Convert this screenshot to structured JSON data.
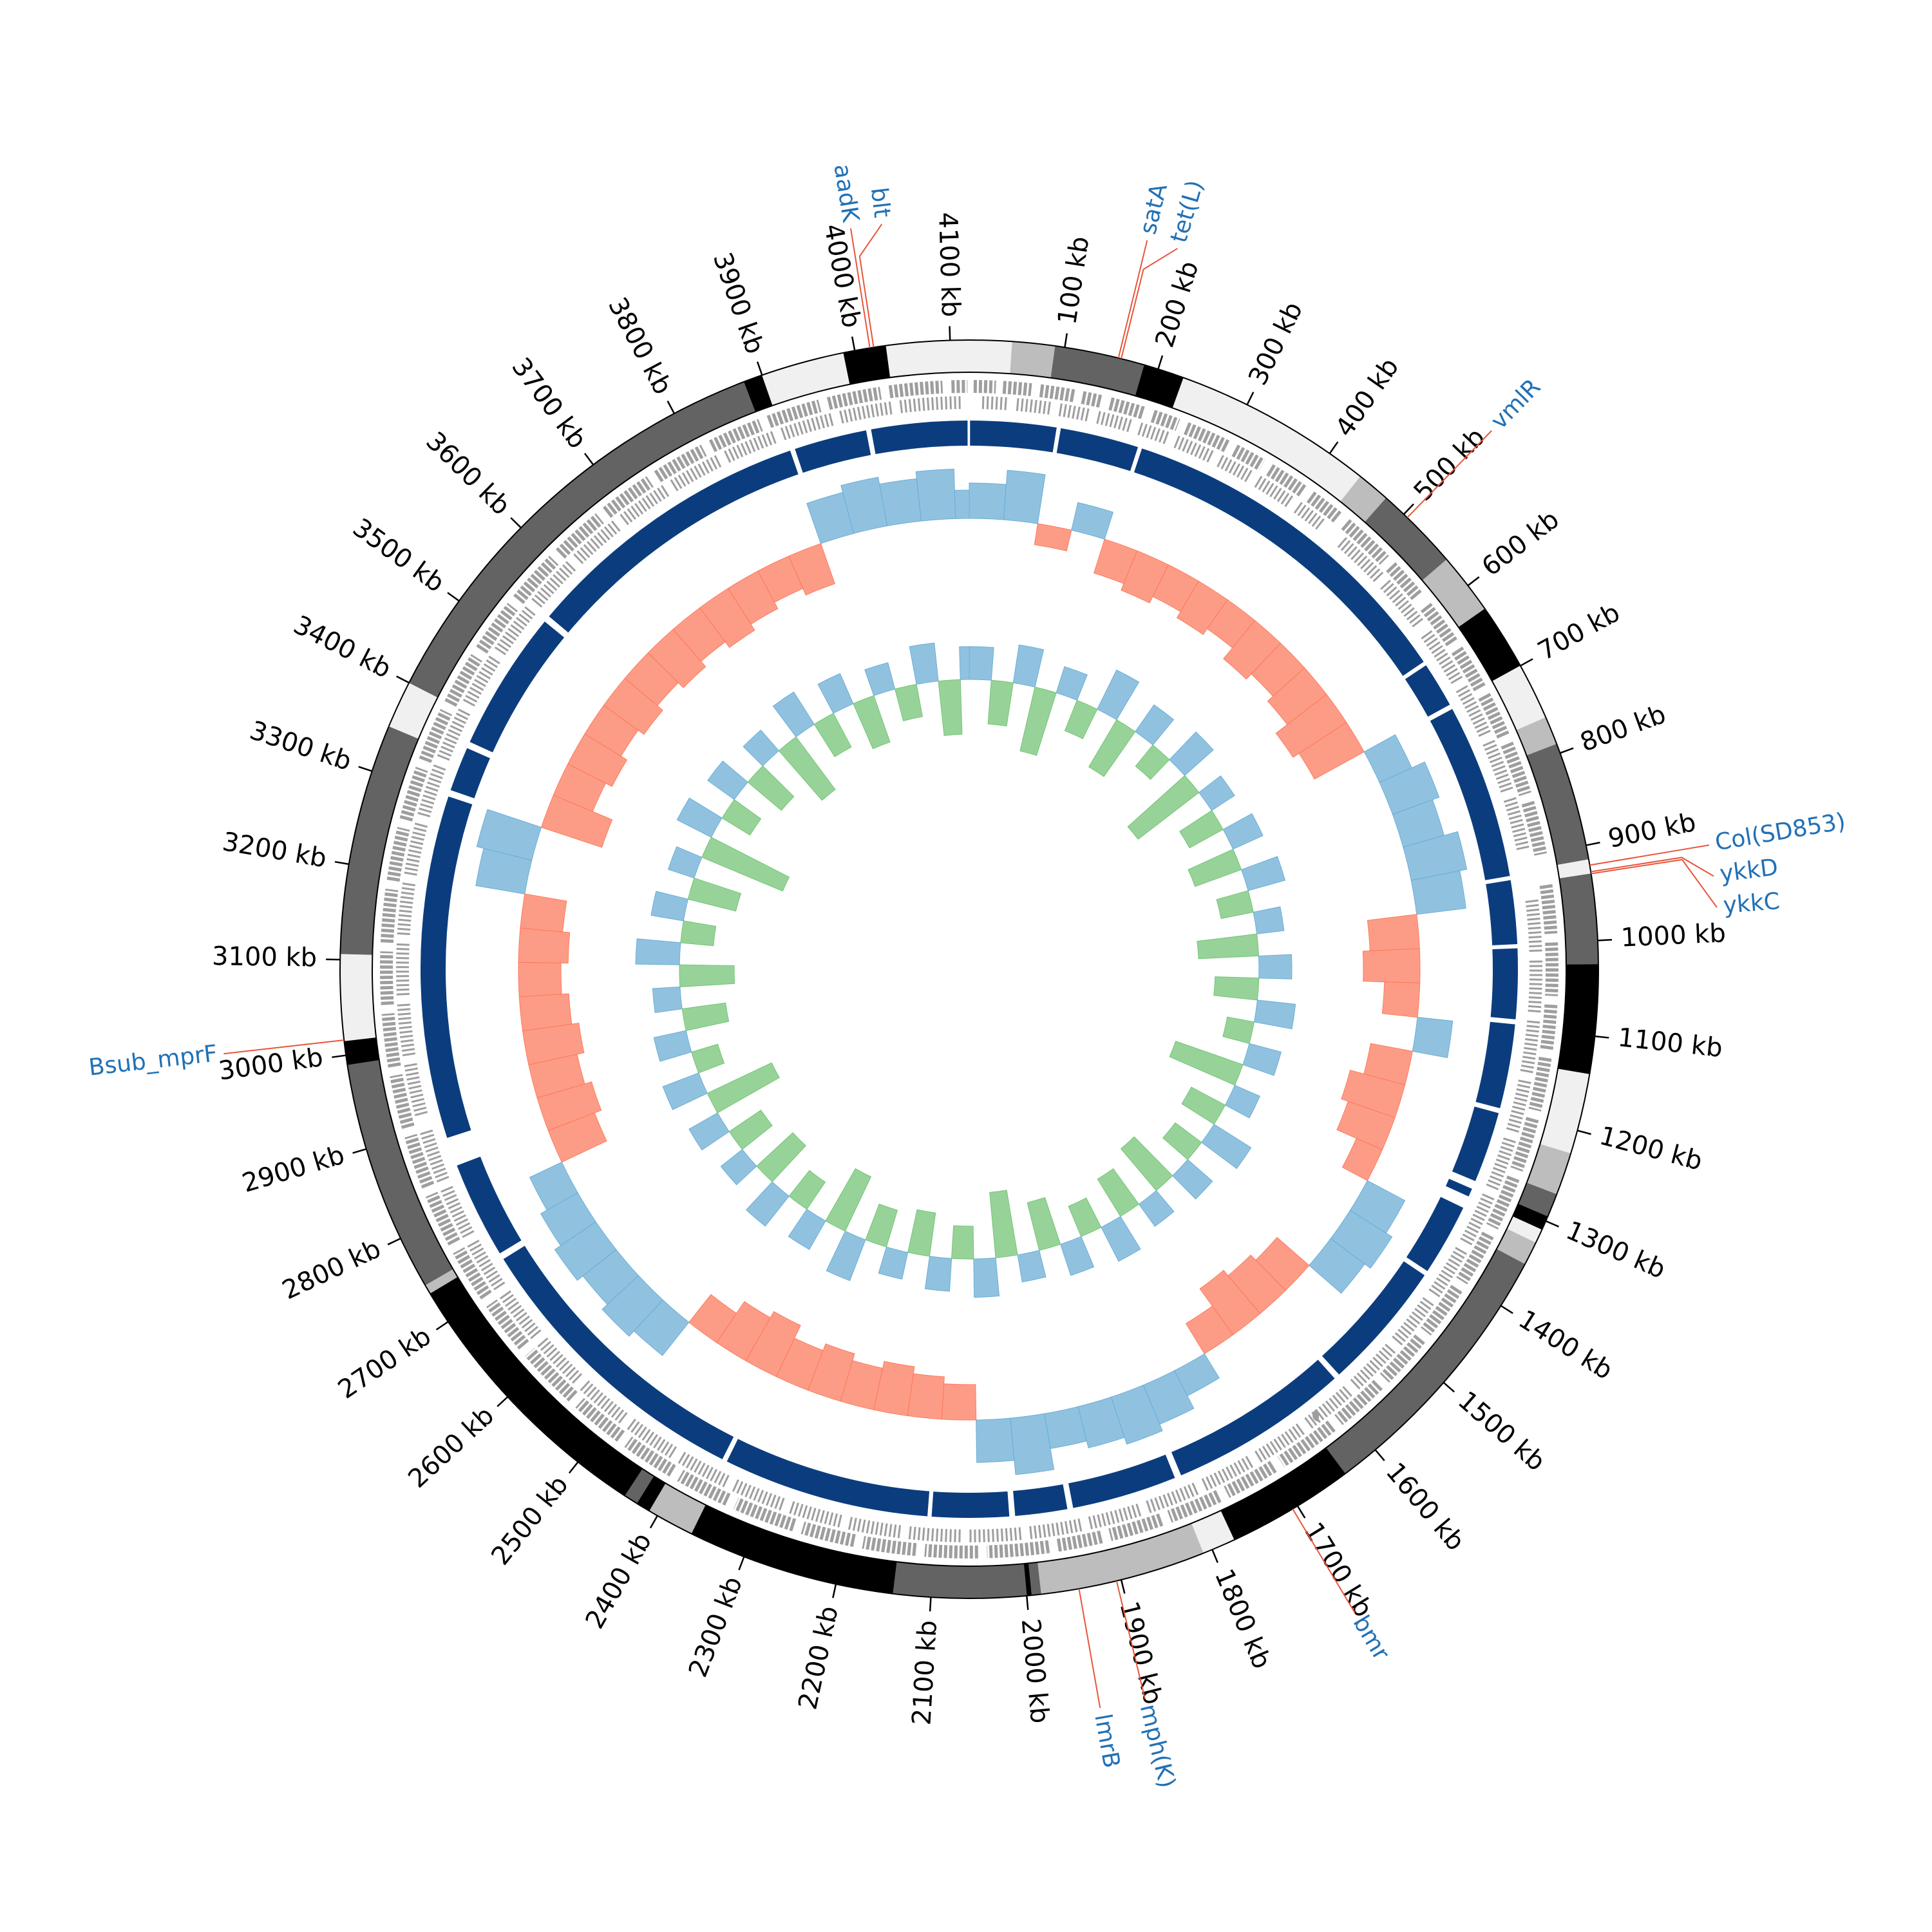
{
  "chart_data": {
    "type": "circular-genome",
    "xlim": [
      0,
      4120
    ],
    "xticks": [
      {
        "value": 100,
        "label": "100 kb"
      },
      {
        "value": 200,
        "label": "200 kb"
      },
      {
        "value": 300,
        "label": "300 kb"
      },
      {
        "value": 400,
        "label": "400 kb"
      },
      {
        "value": 500,
        "label": "500 kb"
      },
      {
        "value": 600,
        "label": "600 kb"
      },
      {
        "value": 700,
        "label": "700 kb"
      },
      {
        "value": 800,
        "label": "800 kb"
      },
      {
        "value": 900,
        "label": "900 kb"
      },
      {
        "value": 1000,
        "label": "1000 kb"
      },
      {
        "value": 1100,
        "label": "1100 kb"
      },
      {
        "value": 1200,
        "label": "1200 kb"
      },
      {
        "value": 1300,
        "label": "1300 kb"
      },
      {
        "value": 1400,
        "label": "1400 kb"
      },
      {
        "value": 1500,
        "label": "1500 kb"
      },
      {
        "value": 1600,
        "label": "1600 kb"
      },
      {
        "value": 1700,
        "label": "1700 kb"
      },
      {
        "value": 1800,
        "label": "1800 kb"
      },
      {
        "value": 1900,
        "label": "1900 kb"
      },
      {
        "value": 2000,
        "label": "2000 kb"
      },
      {
        "value": 2100,
        "label": "2100 kb"
      },
      {
        "value": 2200,
        "label": "2200 kb"
      },
      {
        "value": 2300,
        "label": "2300 kb"
      },
      {
        "value": 2400,
        "label": "2400 kb"
      },
      {
        "value": 2500,
        "label": "2500 kb"
      },
      {
        "value": 2600,
        "label": "2600 kb"
      },
      {
        "value": 2700,
        "label": "2700 kb"
      },
      {
        "value": 2800,
        "label": "2800 kb"
      },
      {
        "value": 2900,
        "label": "2900 kb"
      },
      {
        "value": 3000,
        "label": "3000 kb"
      },
      {
        "value": 3100,
        "label": "3100 kb"
      },
      {
        "value": 3200,
        "label": "3200 kb"
      },
      {
        "value": 3300,
        "label": "3300 kb"
      },
      {
        "value": 3400,
        "label": "3400 kb"
      },
      {
        "value": 3500,
        "label": "3500 kb"
      },
      {
        "value": 3600,
        "label": "3600 kb"
      },
      {
        "value": 3700,
        "label": "3700 kb"
      },
      {
        "value": 3800,
        "label": "3800 kb"
      },
      {
        "value": 3900,
        "label": "3900 kb"
      },
      {
        "value": 4000,
        "label": "4000 kb"
      },
      {
        "value": 4100,
        "label": "4100 kb"
      }
    ],
    "bands": [
      {
        "start": 0,
        "end": 45,
        "color": "#f0f0f0"
      },
      {
        "start": 45,
        "end": 90,
        "color": "#bdbdbd"
      },
      {
        "start": 90,
        "end": 185,
        "color": "#636363"
      },
      {
        "start": 185,
        "end": 228,
        "color": "#000000"
      },
      {
        "start": 228,
        "end": 330,
        "color": "#f0f0f0"
      },
      {
        "start": 330,
        "end": 440,
        "color": "#f0f0f0"
      },
      {
        "start": 440,
        "end": 475,
        "color": "#bdbdbd"
      },
      {
        "start": 475,
        "end": 565,
        "color": "#636363"
      },
      {
        "start": 565,
        "end": 630,
        "color": "#bdbdbd"
      },
      {
        "start": 630,
        "end": 700,
        "color": "#000000"
      },
      {
        "start": 700,
        "end": 760,
        "color": "#f0f0f0"
      },
      {
        "start": 760,
        "end": 790,
        "color": "#bdbdbd"
      },
      {
        "start": 790,
        "end": 915,
        "color": "#636363"
      },
      {
        "start": 915,
        "end": 930,
        "color": "#f0f0f0"
      },
      {
        "start": 930,
        "end": 1025,
        "color": "#636363"
      },
      {
        "start": 1025,
        "end": 1140,
        "color": "#000000"
      },
      {
        "start": 1140,
        "end": 1160,
        "color": "#f0f0f0"
      },
      {
        "start": 1160,
        "end": 1225,
        "color": "#f0f0f0"
      },
      {
        "start": 1225,
        "end": 1270,
        "color": "#bdbdbd"
      },
      {
        "start": 1270,
        "end": 1295,
        "color": "#636363"
      },
      {
        "start": 1295,
        "end": 1310,
        "color": "#000000"
      },
      {
        "start": 1310,
        "end": 1325,
        "color": "#f0f0f0"
      },
      {
        "start": 1325,
        "end": 1350,
        "color": "#bdbdbd"
      },
      {
        "start": 1350,
        "end": 1640,
        "color": "#636363"
      },
      {
        "start": 1640,
        "end": 1775,
        "color": "#000000"
      },
      {
        "start": 1775,
        "end": 1810,
        "color": "#f0f0f0"
      },
      {
        "start": 1810,
        "end": 1985,
        "color": "#bdbdbd"
      },
      {
        "start": 1985,
        "end": 1995,
        "color": "#636363"
      },
      {
        "start": 1995,
        "end": 2000,
        "color": "#000000"
      },
      {
        "start": 2000,
        "end": 2140,
        "color": "#636363"
      },
      {
        "start": 2140,
        "end": 2360,
        "color": "#000000"
      },
      {
        "start": 2360,
        "end": 2410,
        "color": "#bdbdbd"
      },
      {
        "start": 2410,
        "end": 2425,
        "color": "#000000"
      },
      {
        "start": 2425,
        "end": 2440,
        "color": "#636363"
      },
      {
        "start": 2440,
        "end": 2735,
        "color": "#000000"
      },
      {
        "start": 2735,
        "end": 2745,
        "color": "#bdbdbd"
      },
      {
        "start": 2745,
        "end": 2990,
        "color": "#636363"
      },
      {
        "start": 2990,
        "end": 3015,
        "color": "#000000"
      },
      {
        "start": 3015,
        "end": 3106,
        "color": "#f0f0f0"
      },
      {
        "start": 3106,
        "end": 3350,
        "color": "#636363"
      },
      {
        "start": 3350,
        "end": 3400,
        "color": "#f0f0f0"
      },
      {
        "start": 3400,
        "end": 3880,
        "color": "#636363"
      },
      {
        "start": 3880,
        "end": 3900,
        "color": "#000000"
      },
      {
        "start": 3900,
        "end": 3988,
        "color": "#f0f0f0"
      },
      {
        "start": 3988,
        "end": 4033,
        "color": "#000000"
      },
      {
        "start": 4033,
        "end": 4120,
        "color": "#f0f0f0"
      }
    ],
    "genes": {
      "color": "#9e9e9e",
      "forward": [
        [
          5,
          30
        ],
        [
          38,
          70
        ],
        [
          80,
          120
        ],
        [
          128,
          150
        ],
        [
          160,
          200
        ],
        [
          210,
          240
        ],
        [
          250,
          300
        ],
        [
          310,
          345
        ],
        [
          355,
          400
        ],
        [
          410,
          450
        ],
        [
          460,
          520
        ],
        [
          530,
          575
        ],
        [
          590,
          640
        ],
        [
          650,
          700
        ],
        [
          710,
          760
        ],
        [
          770,
          830
        ],
        [
          840,
          900
        ],
        [
          935,
          990
        ],
        [
          1000,
          1060
        ],
        [
          1070,
          1120
        ],
        [
          1130,
          1190
        ],
        [
          1200,
          1260
        ],
        [
          1270,
          1330
        ],
        [
          1340,
          1400
        ],
        [
          1410,
          1470
        ],
        [
          1480,
          1540
        ],
        [
          1550,
          1610
        ],
        [
          1620,
          1690
        ],
        [
          1700,
          1760
        ],
        [
          1770,
          1830
        ],
        [
          1840,
          1900
        ],
        [
          1910,
          1960
        ],
        [
          1970,
          2040
        ],
        [
          2050,
          2110
        ],
        [
          2120,
          2180
        ],
        [
          2190,
          2250
        ],
        [
          2260,
          2330
        ],
        [
          2340,
          2400
        ],
        [
          2410,
          2470
        ],
        [
          2480,
          2540
        ],
        [
          2550,
          2620
        ],
        [
          2630,
          2690
        ],
        [
          2700,
          2760
        ],
        [
          2770,
          2830
        ],
        [
          2840,
          2900
        ],
        [
          2910,
          2970
        ],
        [
          2980,
          3040
        ],
        [
          3050,
          3110
        ],
        [
          3120,
          3180
        ],
        [
          3190,
          3250
        ],
        [
          3260,
          3320
        ],
        [
          3330,
          3390
        ],
        [
          3400,
          3460
        ],
        [
          3470,
          3530
        ],
        [
          3540,
          3600
        ],
        [
          3610,
          3670
        ],
        [
          3680,
          3740
        ],
        [
          3750,
          3810
        ],
        [
          3820,
          3880
        ],
        [
          3890,
          3950
        ],
        [
          3960,
          4020
        ],
        [
          4030,
          4090
        ],
        [
          4100,
          4118
        ]
      ],
      "reverse": [
        [
          15,
          45
        ],
        [
          55,
          95
        ],
        [
          105,
          140
        ],
        [
          150,
          190
        ],
        [
          200,
          235
        ],
        [
          245,
          290
        ],
        [
          300,
          340
        ],
        [
          350,
          395
        ],
        [
          405,
          440
        ],
        [
          470,
          530
        ],
        [
          540,
          600
        ],
        [
          615,
          680
        ],
        [
          690,
          750
        ],
        [
          760,
          820
        ],
        [
          830,
          890
        ],
        [
          950,
          1010
        ],
        [
          1020,
          1080
        ],
        [
          1090,
          1150
        ],
        [
          1160,
          1220
        ],
        [
          1230,
          1290
        ],
        [
          1300,
          1360
        ],
        [
          1370,
          1430
        ],
        [
          1440,
          1500
        ],
        [
          1510,
          1570
        ],
        [
          1580,
          1640
        ],
        [
          1650,
          1710
        ],
        [
          1720,
          1780
        ],
        [
          1790,
          1850
        ],
        [
          1860,
          1920
        ],
        [
          1930,
          1990
        ],
        [
          2000,
          2060
        ],
        [
          2070,
          2130
        ],
        [
          2140,
          2200
        ],
        [
          2210,
          2270
        ],
        [
          2280,
          2340
        ],
        [
          2350,
          2410
        ],
        [
          2420,
          2480
        ],
        [
          2490,
          2550
        ],
        [
          2560,
          2620
        ],
        [
          2630,
          2690
        ],
        [
          2700,
          2760
        ],
        [
          2770,
          2830
        ],
        [
          2840,
          2900
        ],
        [
          2920,
          2980
        ],
        [
          2990,
          3050
        ],
        [
          3060,
          3120
        ],
        [
          3130,
          3190
        ],
        [
          3200,
          3260
        ],
        [
          3270,
          3330
        ],
        [
          3340,
          3400
        ],
        [
          3410,
          3470
        ],
        [
          3480,
          3540
        ],
        [
          3550,
          3610
        ],
        [
          3620,
          3680
        ],
        [
          3690,
          3750
        ],
        [
          3760,
          3820
        ],
        [
          3830,
          3890
        ],
        [
          3900,
          3960
        ],
        [
          3970,
          4030
        ],
        [
          4040,
          4110
        ]
      ]
    },
    "blocks": {
      "color": "#0b3d7e",
      "segments": [
        [
          1,
          105
        ],
        [
          110,
          205
        ],
        [
          210,
          640
        ],
        [
          645,
          700
        ],
        [
          706,
          918
        ],
        [
          923,
          1000
        ],
        [
          1005,
          1090
        ],
        [
          1096,
          1198
        ],
        [
          1204,
          1290
        ],
        [
          1300,
          1310
        ],
        [
          1325,
          1412
        ],
        [
          1418,
          1575
        ],
        [
          1582,
          1800
        ],
        [
          1808,
          1935
        ],
        [
          1942,
          2005
        ],
        [
          2012,
          2105
        ],
        [
          2110,
          2360
        ],
        [
          2366,
          2725
        ],
        [
          2733,
          2850
        ],
        [
          2885,
          3300
        ],
        [
          3308,
          3362
        ],
        [
          3370,
          3540
        ],
        [
          3548,
          3902
        ],
        [
          3908,
          3996
        ],
        [
          4002,
          4118
        ]
      ]
    },
    "windows": [
      0,
      50,
      100,
      150,
      200,
      250,
      300,
      350,
      400,
      450,
      500,
      550,
      600,
      650,
      700,
      750,
      800,
      850,
      900,
      950,
      1000,
      1050,
      1100,
      1150,
      1200,
      1250,
      1300,
      1350,
      1400,
      1450,
      1500,
      1550,
      1600,
      1650,
      1700,
      1750,
      1800,
      1850,
      1900,
      1950,
      2000,
      2050,
      2100,
      2150,
      2200,
      2250,
      2300,
      2350,
      2400,
      2450,
      2500,
      2550,
      2600,
      2650,
      2700,
      2750,
      2800,
      2850,
      2900,
      2950,
      3000,
      3050,
      3100,
      3150,
      3200,
      3250,
      3300,
      3350,
      3400,
      3450,
      3500,
      3550,
      3600,
      3650,
      3700,
      3750,
      3800,
      3850,
      3900,
      3950,
      4000,
      4050,
      4100
    ],
    "gc_skew": {
      "positive_color": "#6baed6",
      "negative_color": "#fc7b5d",
      "values": [
        0.5,
        0.7,
        -0.3,
        0.4,
        -0.5,
        -0.6,
        -0.5,
        -0.6,
        -0.5,
        -0.7,
        -0.6,
        -0.7,
        -0.9,
        -0.8,
        0.5,
        0.7,
        0.6,
        0.8,
        0.7,
        -0.7,
        -0.8,
        -0.5,
        0.5,
        -0.6,
        -0.8,
        -0.7,
        -0.4,
        0.6,
        0.7,
        0.6,
        -0.6,
        -0.7,
        -0.8,
        -0.5,
        0.4,
        0.6,
        0.7,
        0.6,
        0.5,
        0.8,
        0.6,
        -0.5,
        -0.6,
        -0.7,
        -0.6,
        -0.7,
        -0.6,
        -0.8,
        -0.7,
        -0.5,
        0.6,
        0.7,
        0.6,
        0.7,
        0.6,
        0.5,
        -0.7,
        -0.8,
        -0.7,
        -0.8,
        -0.7,
        -0.6,
        -0.7,
        -0.6,
        0.7,
        0.8,
        -0.9,
        -0.6,
        -0.7,
        -0.6,
        -0.7,
        -0.6,
        -0.7,
        -0.6,
        -0.7,
        -0.6,
        -0.5,
        -0.6,
        0.6,
        0.7,
        0.6,
        0.7,
        0.4
      ]
    },
    "gc_content": {
      "positive_color": "#6baed6",
      "negative_color": "#74c476",
      "values": [
        0.6,
        -0.8,
        0.7,
        -1.2,
        0.5,
        -0.6,
        0.8,
        -1.0,
        0.6,
        -0.5,
        0.7,
        -1.4,
        0.5,
        -0.7,
        0.6,
        -0.9,
        0.7,
        -0.6,
        0.5,
        -1.1,
        0.6,
        -0.8,
        0.7,
        -0.5,
        0.6,
        -1.3,
        0.5,
        -0.7,
        0.8,
        -0.6,
        0.6,
        -1.0,
        0.5,
        -0.8,
        0.7,
        -0.6,
        0.6,
        -0.9,
        0.5,
        -1.2,
        0.7,
        -0.6,
        0.6,
        -0.8,
        0.5,
        -0.7,
        0.8,
        -1.1,
        0.6,
        -0.6,
        0.7,
        -0.9,
        0.5,
        -0.7,
        0.6,
        -1.3,
        0.7,
        -0.5,
        0.6,
        -0.8,
        0.5,
        -1.0,
        0.8,
        -0.6,
        0.6,
        -0.9,
        0.5,
        -1.6,
        0.7,
        -0.6,
        0.6,
        -0.8,
        0.5,
        -1.2,
        0.7,
        -0.7,
        0.6,
        -0.9,
        0.5,
        -0.6,
        0.7,
        -1.0,
        0.6
      ]
    },
    "annotation_color": "#2171b5",
    "leader_color": "#e8553a",
    "annotations": [
      {
        "label": "satA",
        "position": 157
      },
      {
        "label": "tet(L)",
        "position": 160
      },
      {
        "label": "vmlR",
        "position": 505
      },
      {
        "label": "Col(SD853)",
        "position": 921
      },
      {
        "label": "ykkD",
        "position": 928
      },
      {
        "label": "ykkC",
        "position": 930
      },
      {
        "label": "bmr",
        "position": 1706
      },
      {
        "label": "mph(K)",
        "position": 1905
      },
      {
        "label": "lmrB",
        "position": 1945
      },
      {
        "label": "Bsub_mprF",
        "position": 3016
      },
      {
        "label": "aadK",
        "position": 4016
      },
      {
        "label": "blt",
        "position": 4020
      }
    ]
  }
}
